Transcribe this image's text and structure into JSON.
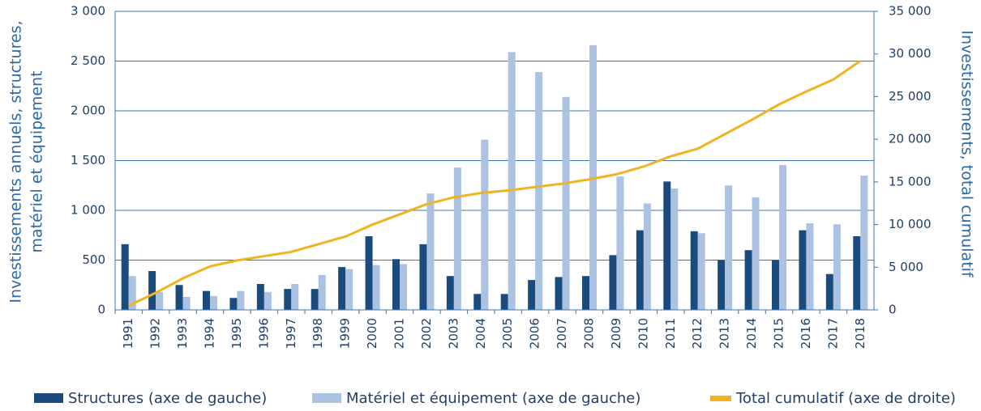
{
  "chart_data": {
    "type": "bar-line",
    "ylabel": [
      "Investissements annuels, structures,",
      "matériel et équipement"
    ],
    "y2label": "Investissements, total cumulatif",
    "categories": [
      "1991",
      "1992",
      "1993",
      "1994",
      "1995",
      "1996",
      "1997",
      "1998",
      "1999",
      "2000",
      "2001",
      "2002",
      "2003",
      "2004",
      "2005",
      "2006",
      "2007",
      "2008",
      "2009",
      "2010",
      "2011",
      "2012",
      "2013",
      "2014",
      "2015",
      "2016",
      "2017",
      "2018"
    ],
    "series": [
      {
        "name": "Structures (axe de gauche)",
        "type": "bar",
        "color": "#1b4b7c",
        "values": [
          660,
          390,
          250,
          190,
          120,
          260,
          210,
          210,
          430,
          740,
          510,
          660,
          340,
          160,
          160,
          300,
          330,
          340,
          550,
          800,
          1290,
          790,
          500,
          600,
          500,
          800,
          360,
          740
        ]
      },
      {
        "name": "Matériel et équipement (axe de gauche)",
        "type": "bar",
        "color": "#abc2e2",
        "values": [
          340,
          180,
          130,
          140,
          190,
          180,
          260,
          350,
          410,
          450,
          460,
          1170,
          1430,
          1710,
          2590,
          2390,
          2140,
          2660,
          1340,
          1070,
          1220,
          770,
          1250,
          1130,
          1455,
          870,
          860,
          1350
        ]
      },
      {
        "name": "Total cumulatif (axe de droite)",
        "type": "line",
        "axis": "y2",
        "color": "#f0b323",
        "values": [
          500,
          2000,
          3700,
          5100,
          5800,
          6300,
          6800,
          7700,
          8600,
          10000,
          11200,
          12400,
          13200,
          13700,
          14000,
          14400,
          14800,
          15300,
          15900,
          16800,
          18000,
          18900,
          20600,
          22300,
          24100,
          25600,
          27000,
          29200
        ]
      }
    ],
    "ylim": [
      0,
      3000
    ],
    "yticks": [
      0,
      500,
      {
        "value": 1000,
        "label": "1 000"
      },
      {
        "value": 1500,
        "label": "1 500"
      },
      {
        "value": 2000,
        "label": "2 000"
      },
      {
        "value": 2500,
        "label": "2 500"
      },
      {
        "value": 3000,
        "label": "3 000"
      }
    ],
    "y2lim": [
      0,
      35000
    ],
    "y2ticks": [
      0,
      {
        "value": 5000,
        "label": "5 000"
      },
      {
        "value": 10000,
        "label": "10 000"
      },
      {
        "value": 15000,
        "label": "15 000"
      },
      {
        "value": 20000,
        "label": "20 000"
      },
      {
        "value": 25000,
        "label": "25 000"
      },
      {
        "value": 30000,
        "label": "30 000"
      },
      {
        "value": 35000,
        "label": "35 000"
      }
    ],
    "grid": true,
    "legend": "bottom"
  }
}
